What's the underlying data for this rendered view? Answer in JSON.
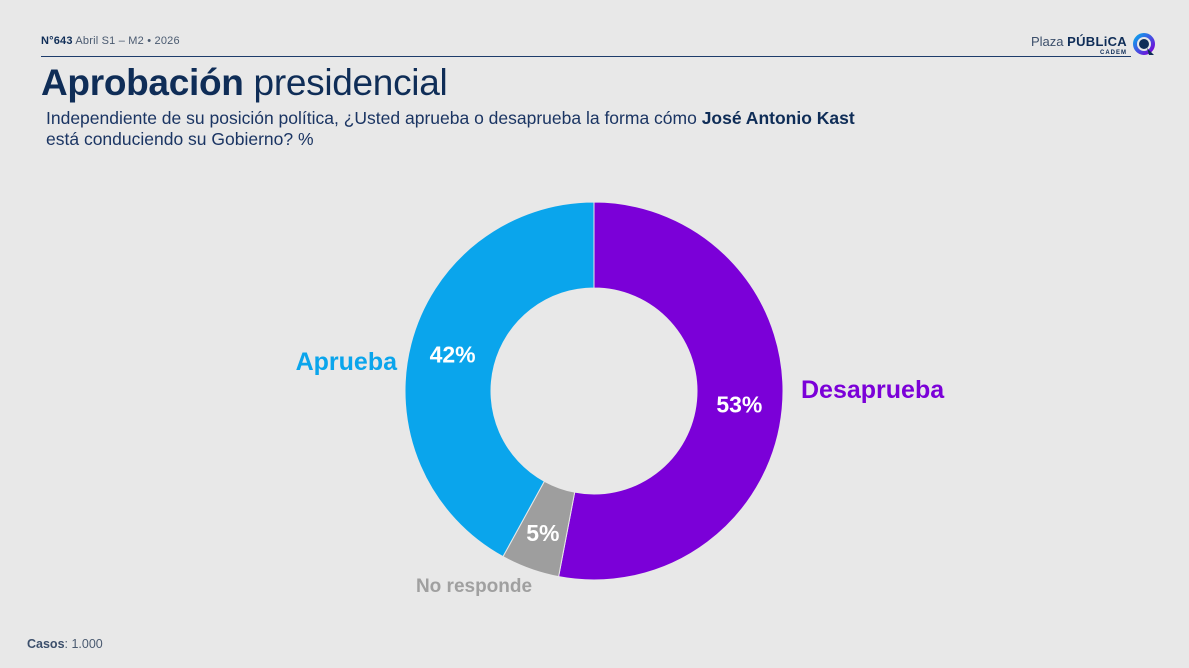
{
  "header": {
    "issue_number": "N°643",
    "issue_period": "Abril S1 – M2 • 2026",
    "brand_prefix": "Plaza",
    "brand_main": "PÚBLiCA",
    "brand_sub": "CADEM",
    "brand_icon": "cadem-logo-icon"
  },
  "title": {
    "bold": "Aprobación",
    "regular": "presidencial"
  },
  "subtitle": {
    "part1": "Independiente de su posición política, ¿Usted aprueba o desaprueba la forma cómo ",
    "name": "José Antonio Kast",
    "part2": "está conduciendo su Gobierno? %"
  },
  "chart_data": {
    "type": "pie",
    "variant": "donut",
    "title": "Aprobación presidencial",
    "categories": [
      "Desaprueba",
      "No responde",
      "Aprueba"
    ],
    "values": [
      53,
      5,
      42
    ],
    "value_labels": [
      "53%",
      "5%",
      "42%"
    ],
    "colors": [
      "#7b00d8",
      "#9e9e9e",
      "#0aa5ec"
    ],
    "label_colors": [
      "#7b00d8",
      "#a0a0a0",
      "#0aa5ec"
    ],
    "start": "top, clockwise"
  },
  "footer": {
    "cases_label": "Casos",
    "cases_value": ": 1.000"
  }
}
